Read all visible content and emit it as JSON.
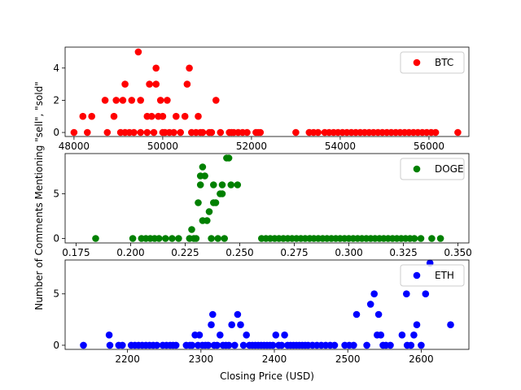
{
  "figure": {
    "ylabel": "Number of Comments Mentioning \"sell\", \"sold\"",
    "xlabel": "Closing Price (USD)"
  },
  "chart_data": [
    {
      "type": "scatter",
      "legend": "BTC",
      "legend_position": "top-right",
      "color": "#ff0000",
      "grid": false,
      "xlim": [
        47800,
        56900
      ],
      "ylim": [
        -0.25,
        5.3
      ],
      "xticks": [
        48000,
        50000,
        52000,
        54000,
        56000
      ],
      "xtick_labels": [
        "48000",
        "50000",
        "52000",
        "54000",
        "56000"
      ],
      "yticks": [
        0,
        2,
        4
      ],
      "ytick_labels": [
        "0",
        "2",
        "4"
      ],
      "points": [
        [
          48000,
          0
        ],
        [
          48200,
          1
        ],
        [
          48300,
          0
        ],
        [
          48400,
          1
        ],
        [
          48700,
          2
        ],
        [
          48750,
          0
        ],
        [
          48900,
          1
        ],
        [
          48950,
          2
        ],
        [
          49050,
          0
        ],
        [
          49100,
          2
        ],
        [
          49150,
          0
        ],
        [
          49150,
          3
        ],
        [
          49250,
          0
        ],
        [
          49300,
          2
        ],
        [
          49350,
          0
        ],
        [
          49450,
          5
        ],
        [
          49500,
          2
        ],
        [
          49500,
          0
        ],
        [
          49650,
          0
        ],
        [
          49650,
          1
        ],
        [
          49700,
          3
        ],
        [
          49750,
          1
        ],
        [
          49800,
          0
        ],
        [
          49850,
          4
        ],
        [
          49850,
          3
        ],
        [
          49900,
          1
        ],
        [
          49950,
          2
        ],
        [
          50000,
          0
        ],
        [
          50000,
          1
        ],
        [
          50050,
          0
        ],
        [
          50100,
          2
        ],
        [
          50150,
          0
        ],
        [
          50250,
          0
        ],
        [
          50300,
          1
        ],
        [
          50400,
          0
        ],
        [
          50500,
          1
        ],
        [
          50550,
          3
        ],
        [
          50600,
          4
        ],
        [
          50650,
          0
        ],
        [
          50750,
          0
        ],
        [
          50800,
          1
        ],
        [
          50850,
          0
        ],
        [
          50900,
          0
        ],
        [
          51050,
          0
        ],
        [
          51100,
          0
        ],
        [
          51200,
          2
        ],
        [
          51300,
          0
        ],
        [
          51500,
          0
        ],
        [
          51550,
          0
        ],
        [
          51600,
          0
        ],
        [
          51700,
          0
        ],
        [
          51800,
          0
        ],
        [
          51900,
          0
        ],
        [
          52100,
          0
        ],
        [
          52150,
          0
        ],
        [
          52200,
          0
        ],
        [
          53000,
          0
        ],
        [
          53300,
          0
        ],
        [
          53400,
          0
        ],
        [
          53500,
          0
        ],
        [
          53650,
          0
        ],
        [
          53750,
          0
        ],
        [
          53850,
          0
        ],
        [
          53950,
          0
        ],
        [
          54050,
          0
        ],
        [
          54150,
          0
        ],
        [
          54250,
          0
        ],
        [
          54350,
          0
        ],
        [
          54450,
          0
        ],
        [
          54550,
          0
        ],
        [
          54650,
          0
        ],
        [
          54750,
          0
        ],
        [
          54850,
          0
        ],
        [
          54950,
          0
        ],
        [
          55050,
          0
        ],
        [
          55150,
          0
        ],
        [
          55250,
          0
        ],
        [
          55350,
          0
        ],
        [
          55450,
          0
        ],
        [
          55550,
          0
        ],
        [
          55650,
          0
        ],
        [
          55750,
          0
        ],
        [
          55850,
          0
        ],
        [
          55950,
          0
        ],
        [
          56050,
          0
        ],
        [
          56150,
          0
        ],
        [
          56650,
          0
        ]
      ]
    },
    {
      "type": "scatter",
      "legend": "DOGE",
      "legend_position": "top-right",
      "color": "#008000",
      "grid": false,
      "xlim": [
        0.17,
        0.355
      ],
      "ylim": [
        -0.5,
        9.5
      ],
      "xticks": [
        0.175,
        0.2,
        0.225,
        0.25,
        0.275,
        0.3,
        0.325,
        0.35
      ],
      "xtick_labels": [
        "0.175",
        "0.200",
        "0.225",
        "0.250",
        "0.275",
        "0.300",
        "0.325",
        "0.350"
      ],
      "yticks": [
        0,
        5
      ],
      "ytick_labels": [
        "0",
        "5"
      ],
      "points": [
        [
          0.184,
          0
        ],
        [
          0.201,
          0
        ],
        [
          0.205,
          0
        ],
        [
          0.207,
          0
        ],
        [
          0.209,
          0
        ],
        [
          0.211,
          0
        ],
        [
          0.213,
          0
        ],
        [
          0.216,
          0
        ],
        [
          0.219,
          0
        ],
        [
          0.222,
          0
        ],
        [
          0.227,
          0
        ],
        [
          0.228,
          1
        ],
        [
          0.229,
          0
        ],
        [
          0.23,
          0
        ],
        [
          0.231,
          4
        ],
        [
          0.232,
          7
        ],
        [
          0.232,
          6
        ],
        [
          0.233,
          8
        ],
        [
          0.233,
          2
        ],
        [
          0.234,
          7
        ],
        [
          0.235,
          2
        ],
        [
          0.236,
          3
        ],
        [
          0.237,
          0
        ],
        [
          0.238,
          4
        ],
        [
          0.238,
          6
        ],
        [
          0.239,
          4
        ],
        [
          0.24,
          0
        ],
        [
          0.241,
          5
        ],
        [
          0.242,
          5
        ],
        [
          0.242,
          6
        ],
        [
          0.243,
          0
        ],
        [
          0.244,
          9
        ],
        [
          0.245,
          9
        ],
        [
          0.246,
          6
        ],
        [
          0.249,
          6
        ],
        [
          0.26,
          0
        ],
        [
          0.262,
          0
        ],
        [
          0.264,
          0
        ],
        [
          0.266,
          0
        ],
        [
          0.268,
          0
        ],
        [
          0.27,
          0
        ],
        [
          0.272,
          0
        ],
        [
          0.274,
          0
        ],
        [
          0.276,
          0
        ],
        [
          0.278,
          0
        ],
        [
          0.28,
          0
        ],
        [
          0.282,
          0
        ],
        [
          0.284,
          0
        ],
        [
          0.286,
          0
        ],
        [
          0.288,
          0
        ],
        [
          0.29,
          0
        ],
        [
          0.292,
          0
        ],
        [
          0.294,
          0
        ],
        [
          0.296,
          0
        ],
        [
          0.298,
          0
        ],
        [
          0.3,
          0
        ],
        [
          0.302,
          0
        ],
        [
          0.304,
          0
        ],
        [
          0.306,
          0
        ],
        [
          0.308,
          0
        ],
        [
          0.31,
          0
        ],
        [
          0.312,
          0
        ],
        [
          0.314,
          0
        ],
        [
          0.316,
          0
        ],
        [
          0.318,
          0
        ],
        [
          0.32,
          0
        ],
        [
          0.322,
          0
        ],
        [
          0.324,
          0
        ],
        [
          0.326,
          0
        ],
        [
          0.328,
          0
        ],
        [
          0.33,
          0
        ],
        [
          0.333,
          0
        ],
        [
          0.338,
          0
        ],
        [
          0.342,
          0
        ]
      ]
    },
    {
      "type": "scatter",
      "legend": "ETH",
      "legend_position": "top-right",
      "color": "#0000ff",
      "grid": false,
      "xlim": [
        2115,
        2665
      ],
      "ylim": [
        -0.4,
        8.3
      ],
      "xticks": [
        2200,
        2300,
        2400,
        2500,
        2600
      ],
      "xtick_labels": [
        "2200",
        "2300",
        "2400",
        "2500",
        "2600"
      ],
      "yticks": [
        0,
        5
      ],
      "ytick_labels": [
        "0",
        "5"
      ],
      "points": [
        [
          2140,
          0
        ],
        [
          2175,
          1
        ],
        [
          2176,
          0
        ],
        [
          2188,
          0
        ],
        [
          2193,
          0
        ],
        [
          2205,
          0
        ],
        [
          2210,
          0
        ],
        [
          2215,
          0
        ],
        [
          2220,
          0
        ],
        [
          2225,
          0
        ],
        [
          2230,
          0
        ],
        [
          2235,
          0
        ],
        [
          2240,
          0
        ],
        [
          2248,
          0
        ],
        [
          2253,
          0
        ],
        [
          2258,
          0
        ],
        [
          2262,
          0
        ],
        [
          2266,
          0
        ],
        [
          2280,
          0
        ],
        [
          2285,
          0
        ],
        [
          2288,
          0
        ],
        [
          2292,
          1
        ],
        [
          2296,
          0
        ],
        [
          2298,
          1
        ],
        [
          2302,
          0
        ],
        [
          2306,
          0
        ],
        [
          2310,
          0
        ],
        [
          2314,
          2
        ],
        [
          2316,
          3
        ],
        [
          2318,
          0
        ],
        [
          2322,
          0
        ],
        [
          2326,
          1
        ],
        [
          2330,
          0
        ],
        [
          2334,
          0
        ],
        [
          2338,
          0
        ],
        [
          2342,
          2
        ],
        [
          2346,
          0
        ],
        [
          2350,
          3
        ],
        [
          2354,
          2
        ],
        [
          2358,
          0
        ],
        [
          2362,
          1
        ],
        [
          2366,
          0
        ],
        [
          2370,
          0
        ],
        [
          2374,
          0
        ],
        [
          2378,
          0
        ],
        [
          2382,
          0
        ],
        [
          2386,
          0
        ],
        [
          2390,
          0
        ],
        [
          2394,
          0
        ],
        [
          2398,
          0
        ],
        [
          2402,
          1
        ],
        [
          2406,
          0
        ],
        [
          2410,
          0
        ],
        [
          2414,
          1
        ],
        [
          2418,
          0
        ],
        [
          2422,
          0
        ],
        [
          2426,
          0
        ],
        [
          2430,
          0
        ],
        [
          2434,
          0
        ],
        [
          2438,
          0
        ],
        [
          2442,
          0
        ],
        [
          2446,
          0
        ],
        [
          2452,
          0
        ],
        [
          2458,
          0
        ],
        [
          2464,
          0
        ],
        [
          2470,
          0
        ],
        [
          2476,
          0
        ],
        [
          2482,
          0
        ],
        [
          2496,
          0
        ],
        [
          2502,
          0
        ],
        [
          2508,
          0
        ],
        [
          2512,
          3
        ],
        [
          2526,
          0
        ],
        [
          2531,
          4
        ],
        [
          2536,
          5
        ],
        [
          2540,
          1
        ],
        [
          2542,
          3
        ],
        [
          2545,
          1
        ],
        [
          2548,
          0
        ],
        [
          2552,
          0
        ],
        [
          2558,
          0
        ],
        [
          2574,
          1
        ],
        [
          2580,
          5
        ],
        [
          2581,
          0
        ],
        [
          2586,
          0
        ],
        [
          2590,
          1
        ],
        [
          2594,
          2
        ],
        [
          2600,
          0
        ],
        [
          2606,
          5
        ],
        [
          2612,
          8
        ],
        [
          2640,
          2
        ]
      ]
    }
  ]
}
